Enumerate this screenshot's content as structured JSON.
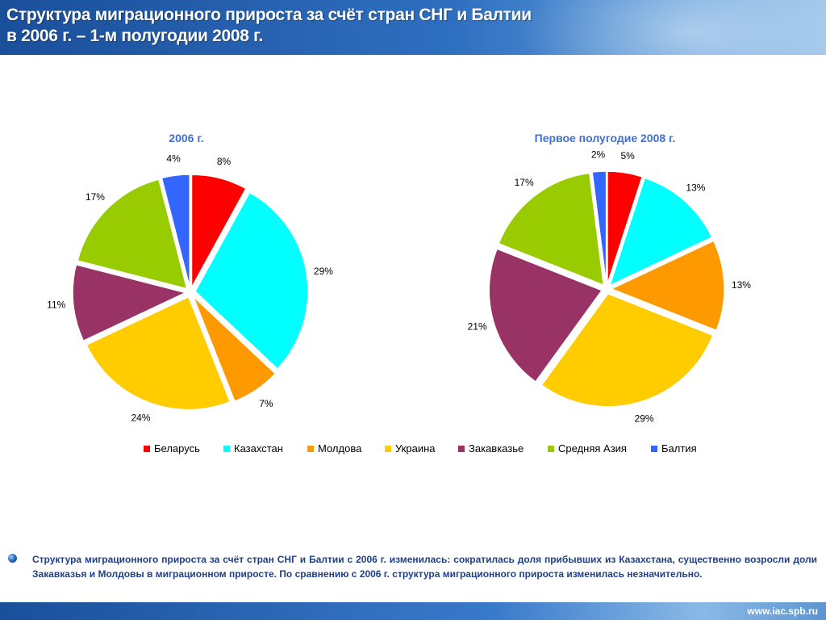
{
  "header": {
    "title_line1": "Структура миграционного прироста за счёт стран СНГ и Балтии",
    "title_line2": "в 2006 г. – 1-м полугодии 2008 г."
  },
  "chart_data": [
    {
      "type": "pie",
      "title": "2006 г.",
      "categories": [
        "Беларусь",
        "Казахстан",
        "Молдова",
        "Украина",
        "Закавказье",
        "Средняя Азия",
        "Балтия"
      ],
      "values": [
        8,
        29,
        7,
        24,
        11,
        17,
        4
      ],
      "labels": [
        "8%",
        "29%",
        "7%",
        "24%",
        "11%",
        "17%",
        "4%"
      ]
    },
    {
      "type": "pie",
      "title": "Первое полугодие  2008 г.",
      "categories": [
        "Беларусь",
        "Казахстан",
        "Молдова",
        "Украина",
        "Закавказье",
        "Средняя Азия",
        "Балтия"
      ],
      "values": [
        5,
        13,
        13,
        29,
        21,
        17,
        2
      ],
      "labels": [
        "5%",
        "13%",
        "13%",
        "29%",
        "21%",
        "17%",
        "2%"
      ]
    }
  ],
  "legend": {
    "items": [
      {
        "label": "Беларусь",
        "color": "#ff0000"
      },
      {
        "label": "Казахстан",
        "color": "#00ffff"
      },
      {
        "label": "Молдова",
        "color": "#ff9900"
      },
      {
        "label": "Украина",
        "color": "#ffcc00"
      },
      {
        "label": "Закавказье",
        "color": "#993366"
      },
      {
        "label": "Средняя Азия",
        "color": "#99cc00"
      },
      {
        "label": "Балтия",
        "color": "#3366ff"
      }
    ]
  },
  "summary": {
    "text": "Структура миграционного прироста за счёт стран СНГ и Балтии с 2006 г. изменилась: сократилась доля прибывших из Казахстана, существенно возросли доли Закавказья и Молдовы в миграционном приросте. По сравнению с 2006 г. структура миграционного прироста изменилась незначительно."
  },
  "footer": {
    "url": "www.iac.spb.ru"
  }
}
